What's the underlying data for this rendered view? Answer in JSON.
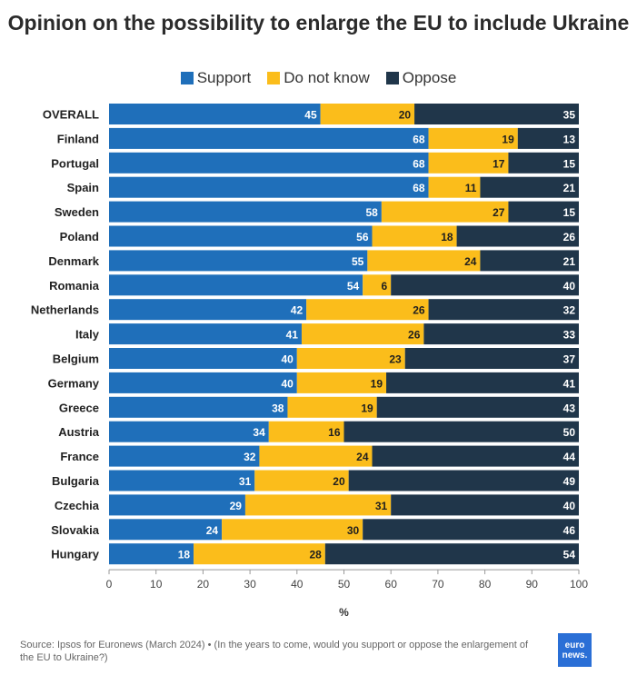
{
  "chart_data": {
    "type": "bar",
    "orientation": "horizontal",
    "stacked": true,
    "title": "Opinion on the possibility to enlarge the EU to include Ukraine",
    "xlabel": "%",
    "ylabel": "",
    "xlim": [
      0,
      100
    ],
    "xticks": [
      0,
      10,
      20,
      30,
      40,
      50,
      60,
      70,
      80,
      90,
      100
    ],
    "legend_position": "top-center",
    "categories": [
      "OVERALL",
      "Finland",
      "Portugal",
      "Spain",
      "Sweden",
      "Poland",
      "Denmark",
      "Romania",
      "Netherlands",
      "Italy",
      "Belgium",
      "Germany",
      "Greece",
      "Austria",
      "France",
      "Bulgaria",
      "Czechia",
      "Slovakia",
      "Hungary"
    ],
    "series": [
      {
        "name": "Support",
        "color": "#1f6fba",
        "label_color": "#ffffff",
        "values": [
          45,
          68,
          68,
          68,
          58,
          56,
          55,
          54,
          42,
          41,
          40,
          40,
          38,
          34,
          32,
          31,
          29,
          24,
          18
        ]
      },
      {
        "name": "Do not know",
        "color": "#fbbd1b",
        "label_color": "#1f1f1f",
        "values": [
          20,
          19,
          17,
          11,
          27,
          18,
          24,
          6,
          26,
          26,
          23,
          19,
          19,
          16,
          24,
          20,
          31,
          30,
          28
        ]
      },
      {
        "name": "Oppose",
        "color": "#20364a",
        "label_color": "#ffffff",
        "values": [
          35,
          13,
          15,
          21,
          15,
          26,
          21,
          40,
          32,
          33,
          37,
          41,
          43,
          50,
          44,
          49,
          40,
          46,
          54
        ]
      }
    ]
  },
  "footer": {
    "source": "Source: Ipsos for Euronews (March 2024) • (In the years to come, would you support or oppose the enlargement of the EU to Ukraine?)"
  },
  "logo": {
    "line1": "euro",
    "line2": "news."
  }
}
